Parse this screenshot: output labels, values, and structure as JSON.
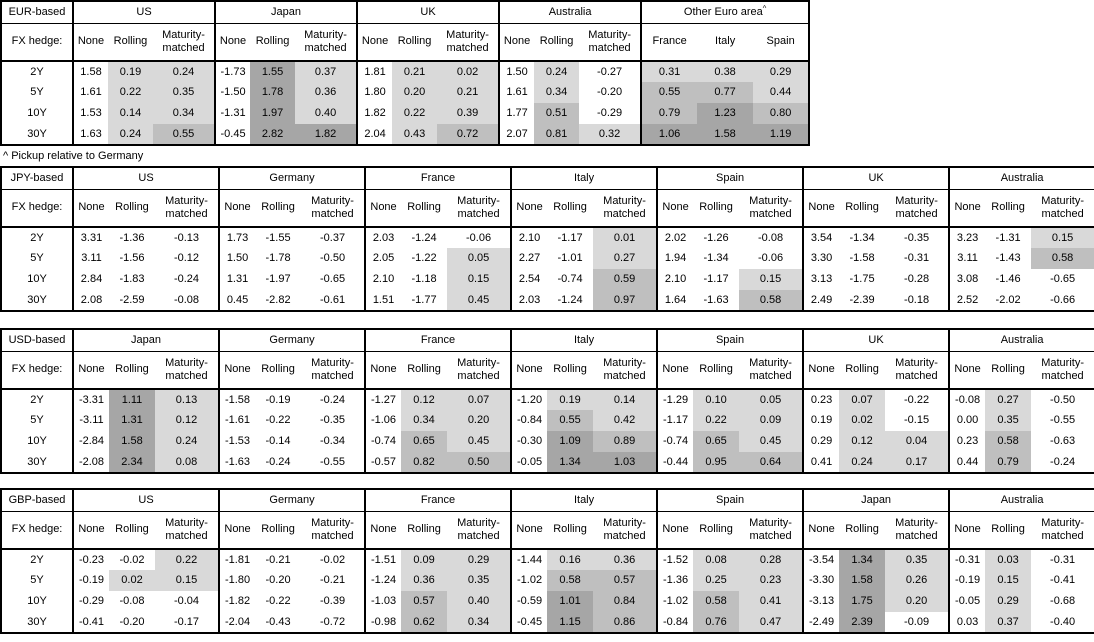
{
  "chart_data": {
    "type": "table",
    "footnote": "^ Pickup relative to Germany",
    "labels": {
      "fx_hedge": "FX hedge:",
      "hedge_columns": [
        "None",
        "Rolling",
        "Maturity-matched"
      ],
      "tenors": [
        "2Y",
        "5Y",
        "10Y",
        "30Y"
      ]
    },
    "shading": {
      "light": "#d9d9d9",
      "medium": "#bfbfbf",
      "dark": "#a6a6a6",
      "light_below": 0.5,
      "medium_below": 1.0
    },
    "tables": [
      {
        "base": "EUR-based",
        "blocks": [
          {
            "country": "US",
            "rows": [
              [
                "1.58",
                "0.19",
                "0.24"
              ],
              [
                "1.61",
                "0.22",
                "0.35"
              ],
              [
                "1.53",
                "0.14",
                "0.34"
              ],
              [
                "1.63",
                "0.24",
                "0.55"
              ]
            ]
          },
          {
            "country": "Japan",
            "rows": [
              [
                "-1.73",
                "1.55",
                "0.37"
              ],
              [
                "-1.50",
                "1.78",
                "0.36"
              ],
              [
                "-1.31",
                "1.97",
                "0.40"
              ],
              [
                "-0.45",
                "2.82",
                "1.82"
              ]
            ]
          },
          {
            "country": "UK",
            "rows": [
              [
                "1.81",
                "0.21",
                "0.02"
              ],
              [
                "1.80",
                "0.20",
                "0.21"
              ],
              [
                "1.82",
                "0.22",
                "0.39"
              ],
              [
                "2.04",
                "0.43",
                "0.72"
              ]
            ]
          },
          {
            "country": "Australia",
            "rows": [
              [
                "1.50",
                "0.24",
                "-0.27"
              ],
              [
                "1.61",
                "0.34",
                "-0.20"
              ],
              [
                "1.77",
                "0.51",
                "-0.29"
              ],
              [
                "2.07",
                "0.81",
                "0.32"
              ]
            ]
          },
          {
            "country": "Other Euro area",
            "footnote_marker": "^",
            "shade_all_columns": true,
            "columns": [
              "France",
              "Italy",
              "Spain"
            ],
            "rows": [
              [
                "0.31",
                "0.38",
                "0.29"
              ],
              [
                "0.55",
                "0.77",
                "0.44"
              ],
              [
                "0.79",
                "1.23",
                "0.80"
              ],
              [
                "1.06",
                "1.58",
                "1.19"
              ]
            ]
          }
        ]
      },
      {
        "base": "JPY-based",
        "blocks": [
          {
            "country": "US",
            "rows": [
              [
                "3.31",
                "-1.36",
                "-0.13"
              ],
              [
                "3.11",
                "-1.56",
                "-0.12"
              ],
              [
                "2.84",
                "-1.83",
                "-0.24"
              ],
              [
                "2.08",
                "-2.59",
                "-0.08"
              ]
            ]
          },
          {
            "country": "Germany",
            "rows": [
              [
                "1.73",
                "-1.55",
                "-0.37"
              ],
              [
                "1.50",
                "-1.78",
                "-0.50"
              ],
              [
                "1.31",
                "-1.97",
                "-0.65"
              ],
              [
                "0.45",
                "-2.82",
                "-0.61"
              ]
            ]
          },
          {
            "country": "France",
            "rows": [
              [
                "2.03",
                "-1.24",
                "-0.06"
              ],
              [
                "2.05",
                "-1.22",
                "0.05"
              ],
              [
                "2.10",
                "-1.18",
                "0.15"
              ],
              [
                "1.51",
                "-1.77",
                "0.45"
              ]
            ]
          },
          {
            "country": "Italy",
            "rows": [
              [
                "2.10",
                "-1.17",
                "0.01"
              ],
              [
                "2.27",
                "-1.01",
                "0.27"
              ],
              [
                "2.54",
                "-0.74",
                "0.59"
              ],
              [
                "2.03",
                "-1.24",
                "0.97"
              ]
            ]
          },
          {
            "country": "Spain",
            "rows": [
              [
                "2.02",
                "-1.26",
                "-0.08"
              ],
              [
                "1.94",
                "-1.34",
                "-0.06"
              ],
              [
                "2.10",
                "-1.17",
                "0.15"
              ],
              [
                "1.64",
                "-1.63",
                "0.58"
              ]
            ]
          },
          {
            "country": "UK",
            "rows": [
              [
                "3.54",
                "-1.34",
                "-0.35"
              ],
              [
                "3.30",
                "-1.58",
                "-0.31"
              ],
              [
                "3.13",
                "-1.75",
                "-0.28"
              ],
              [
                "2.49",
                "-2.39",
                "-0.18"
              ]
            ]
          },
          {
            "country": "Australia",
            "rows": [
              [
                "3.23",
                "-1.31",
                "0.15"
              ],
              [
                "3.11",
                "-1.43",
                "0.58"
              ],
              [
                "3.08",
                "-1.46",
                "-0.65"
              ],
              [
                "2.52",
                "-2.02",
                "-0.66"
              ]
            ]
          }
        ]
      },
      {
        "base": "USD-based",
        "blocks": [
          {
            "country": "Japan",
            "rows": [
              [
                "-3.31",
                "1.11",
                "0.13"
              ],
              [
                "-3.11",
                "1.31",
                "0.12"
              ],
              [
                "-2.84",
                "1.58",
                "0.24"
              ],
              [
                "-2.08",
                "2.34",
                "0.08"
              ]
            ]
          },
          {
            "country": "Germany",
            "rows": [
              [
                "-1.58",
                "-0.19",
                "-0.24"
              ],
              [
                "-1.61",
                "-0.22",
                "-0.35"
              ],
              [
                "-1.53",
                "-0.14",
                "-0.34"
              ],
              [
                "-1.63",
                "-0.24",
                "-0.55"
              ]
            ]
          },
          {
            "country": "France",
            "rows": [
              [
                "-1.27",
                "0.12",
                "0.07"
              ],
              [
                "-1.06",
                "0.34",
                "0.20"
              ],
              [
                "-0.74",
                "0.65",
                "0.45"
              ],
              [
                "-0.57",
                "0.82",
                "0.50"
              ]
            ]
          },
          {
            "country": "Italy",
            "rows": [
              [
                "-1.20",
                "0.19",
                "0.14"
              ],
              [
                "-0.84",
                "0.55",
                "0.42"
              ],
              [
                "-0.30",
                "1.09",
                "0.89"
              ],
              [
                "-0.05",
                "1.34",
                "1.03"
              ]
            ]
          },
          {
            "country": "Spain",
            "rows": [
              [
                "-1.29",
                "0.10",
                "0.05"
              ],
              [
                "-1.17",
                "0.22",
                "0.09"
              ],
              [
                "-0.74",
                "0.65",
                "0.45"
              ],
              [
                "-0.44",
                "0.95",
                "0.64"
              ]
            ]
          },
          {
            "country": "UK",
            "rows": [
              [
                "0.23",
                "0.07",
                "-0.22"
              ],
              [
                "0.19",
                "0.02",
                "-0.15"
              ],
              [
                "0.29",
                "0.12",
                "0.04"
              ],
              [
                "0.41",
                "0.24",
                "0.17"
              ]
            ]
          },
          {
            "country": "Australia",
            "rows": [
              [
                "-0.08",
                "0.27",
                "-0.50"
              ],
              [
                "0.00",
                "0.35",
                "-0.55"
              ],
              [
                "0.23",
                "0.58",
                "-0.63"
              ],
              [
                "0.44",
                "0.79",
                "-0.24"
              ]
            ]
          }
        ]
      },
      {
        "base": "GBP-based",
        "blocks": [
          {
            "country": "US",
            "rows": [
              [
                "-0.23",
                "-0.02",
                "0.22"
              ],
              [
                "-0.19",
                "0.02",
                "0.15"
              ],
              [
                "-0.29",
                "-0.08",
                "-0.04"
              ],
              [
                "-0.41",
                "-0.20",
                "-0.17"
              ]
            ]
          },
          {
            "country": "Germany",
            "rows": [
              [
                "-1.81",
                "-0.21",
                "-0.02"
              ],
              [
                "-1.80",
                "-0.20",
                "-0.21"
              ],
              [
                "-1.82",
                "-0.22",
                "-0.39"
              ],
              [
                "-2.04",
                "-0.43",
                "-0.72"
              ]
            ]
          },
          {
            "country": "France",
            "rows": [
              [
                "-1.51",
                "0.09",
                "0.29"
              ],
              [
                "-1.24",
                "0.36",
                "0.35"
              ],
              [
                "-1.03",
                "0.57",
                "0.40"
              ],
              [
                "-0.98",
                "0.62",
                "0.34"
              ]
            ]
          },
          {
            "country": "Italy",
            "rows": [
              [
                "-1.44",
                "0.16",
                "0.36"
              ],
              [
                "-1.02",
                "0.58",
                "0.57"
              ],
              [
                "-0.59",
                "1.01",
                "0.84"
              ],
              [
                "-0.45",
                "1.15",
                "0.86"
              ]
            ]
          },
          {
            "country": "Spain",
            "rows": [
              [
                "-1.52",
                "0.08",
                "0.28"
              ],
              [
                "-1.36",
                "0.25",
                "0.23"
              ],
              [
                "-1.02",
                "0.58",
                "0.41"
              ],
              [
                "-0.84",
                "0.76",
                "0.47"
              ]
            ]
          },
          {
            "country": "Japan",
            "rows": [
              [
                "-3.54",
                "1.34",
                "0.35"
              ],
              [
                "-3.30",
                "1.58",
                "0.26"
              ],
              [
                "-3.13",
                "1.75",
                "0.20"
              ],
              [
                "-2.49",
                "2.39",
                "-0.09"
              ]
            ]
          },
          {
            "country": "Australia",
            "rows": [
              [
                "-0.31",
                "0.03",
                "-0.31"
              ],
              [
                "-0.19",
                "0.15",
                "-0.41"
              ],
              [
                "-0.05",
                "0.29",
                "-0.68"
              ],
              [
                "0.03",
                "0.37",
                "-0.40"
              ]
            ]
          }
        ]
      }
    ]
  }
}
